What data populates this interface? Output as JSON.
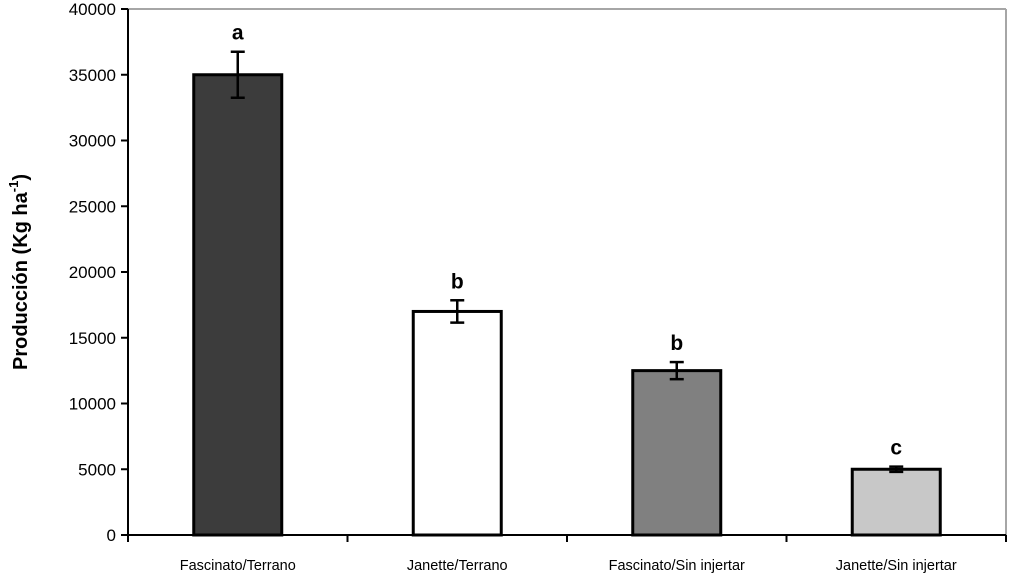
{
  "chart_data": {
    "type": "bar",
    "title": "",
    "xlabel": "",
    "ylabel": {
      "prefix": "Producción (Kg ha",
      "superscript": "-1",
      "suffix": ")"
    },
    "ylim": [
      0,
      40000
    ],
    "yticks": [
      "0",
      "5000",
      "10000",
      "15000",
      "20000",
      "25000",
      "30000",
      "35000",
      "40000"
    ],
    "grid": false,
    "legend": "none",
    "categories": [
      "Fascinato/Terrano",
      "Janette/Terrano",
      "Fascinato/Sin injertar",
      "Janette/Sin injertar"
    ],
    "values": [
      35000,
      17000,
      12500,
      5000
    ],
    "errors": [
      1750,
      850,
      650,
      200
    ],
    "significance": [
      "a",
      "b",
      "b",
      "c"
    ],
    "colors": [
      "#3c3c3c",
      "#ffffff",
      "#808080",
      "#c8c8c8"
    ],
    "bar_edge_color": "#000000",
    "frame_color": "#a6a6a6"
  }
}
